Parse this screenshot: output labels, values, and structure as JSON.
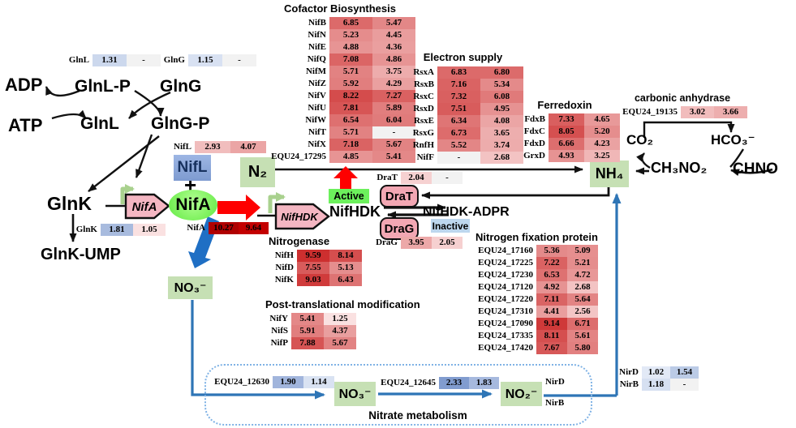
{
  "palette": {
    "red_arrow": "#fe0000",
    "big_blue_arrow": "#1f6fc4",
    "blue_line": "#2e75b6",
    "green_chem_box": "#c6e0b4",
    "gene_pink": "#f4b6c2",
    "enzyme_pink": "#f2a7b3",
    "active_green": "#6cf05c",
    "inactive_blue": "#bdd7ee",
    "nifl_blue": "#8eaadb",
    "nifa_green": "#98f083",
    "dash_border": "#7fb2e5",
    "empty_cell": "#f2f2f2",
    "red_scale_max": "#c92020",
    "blue_scale_max": "#7c98cd"
  },
  "nodes": {
    "adp": "ADP",
    "atp": "ATP",
    "glnlp": "GlnL-P",
    "glng_top": "GlnG",
    "glnl_bottom": "GlnL",
    "glngp": "GlnG-P",
    "glnk": "GlnK",
    "glnk_ump": "GlnK-UMP",
    "nifl_box": "NifL",
    "plus": "+",
    "nifa_ellipse": "NifA",
    "nifa_gene": "NifA",
    "nifhdk_gene": "NifHDK",
    "nifhdk": "NifHDK",
    "nifhdk_adpr": "NifHDK-ADPR",
    "drat": "DraT",
    "drag": "DraG",
    "active": "Active",
    "inactive": "Inactive",
    "n2": "N₂",
    "nh4": "NH₄",
    "no3_upper": "NO₃⁻",
    "no3_inner": "NO₃⁻",
    "no2": "NO₂⁻",
    "co2": "CO₂",
    "hco3": "HCO₃⁻",
    "ch3no2": "CH₃NO₂",
    "chno": "CHNO",
    "carbonic_anhydrase": "carbonic anhydrase",
    "nitrate_metabolism": "Nitrate metabolism",
    "nird_label": "NirD",
    "nirb_label": "NirB"
  },
  "tables": {
    "glnl": {
      "rows": [
        [
          "GlnL",
          "1.31",
          "-"
        ]
      ],
      "scales": [
        "blue",
        "blue"
      ]
    },
    "glng": {
      "rows": [
        [
          "GlnG",
          "1.15",
          "-"
        ]
      ],
      "scales": [
        "blue",
        "blue"
      ]
    },
    "nifl": {
      "rows": [
        [
          "NifL",
          "2.93",
          "4.07"
        ]
      ],
      "scales": [
        "red",
        "red"
      ]
    },
    "glnk": {
      "rows": [
        [
          "GlnK",
          "1.81",
          "1.05"
        ]
      ],
      "scales": [
        "blue",
        "red"
      ]
    },
    "nifa": {
      "rows": [
        [
          "NifA",
          "10.27",
          "9.64"
        ]
      ],
      "scales": [
        "red",
        "red"
      ],
      "colors": [
        [
          "#b00000",
          "#c30000"
        ]
      ]
    },
    "drat": {
      "rows": [
        [
          "DraT",
          "2.04",
          "-"
        ]
      ],
      "scales": [
        "red",
        "red"
      ]
    },
    "drag": {
      "rows": [
        [
          "DraG",
          "3.95",
          "2.05"
        ]
      ],
      "scales": [
        "red",
        "red"
      ]
    },
    "ca": {
      "title": "carbonic anhydrase",
      "rows": [
        [
          "EQU24_19135",
          "3.02",
          "3.66"
        ]
      ],
      "scales": [
        "red",
        "red"
      ]
    },
    "cofactor": {
      "title": "Cofactor Biosynthesis",
      "scales": [
        "red",
        "red"
      ],
      "rows": [
        [
          "NifB",
          "6.85",
          "5.47"
        ],
        [
          "NifN",
          "5.23",
          "4.45"
        ],
        [
          "NifE",
          "4.88",
          "4.36"
        ],
        [
          "NifQ",
          "7.08",
          "4.86"
        ],
        [
          "NifM",
          "5.71",
          "3.75"
        ],
        [
          "NifZ",
          "5.92",
          "4.29"
        ],
        [
          "NifV",
          "8.22",
          "7.27"
        ],
        [
          "NifU",
          "7.81",
          "5.89"
        ],
        [
          "NifW",
          "6.54",
          "6.04"
        ],
        [
          "NifT",
          "5.71",
          "-"
        ],
        [
          "NifX",
          "7.18",
          "5.67"
        ],
        [
          "EQU24_17295",
          "4.85",
          "5.41"
        ]
      ]
    },
    "electron": {
      "title": "Electron supply",
      "scales": [
        "red",
        "red"
      ],
      "rows": [
        [
          "RsxA",
          "6.83",
          "6.80"
        ],
        [
          "RsxB",
          "7.16",
          "5.34"
        ],
        [
          "RsxC",
          "7.32",
          "6.08"
        ],
        [
          "RsxD",
          "7.51",
          "4.95"
        ],
        [
          "RsxE",
          "6.34",
          "4.08"
        ],
        [
          "RsxG",
          "6.73",
          "3.65"
        ],
        [
          "RnfH",
          "5.52",
          "3.74"
        ],
        [
          "NifF",
          "-",
          "2.68"
        ]
      ]
    },
    "ferredoxin": {
      "title": "Ferredoxin",
      "scales": [
        "red",
        "red"
      ],
      "rows": [
        [
          "FdxB",
          "7.33",
          "4.65"
        ],
        [
          "FdxC",
          "8.05",
          "5.20"
        ],
        [
          "FdxD",
          "6.66",
          "4.23"
        ],
        [
          "GrxD",
          "4.93",
          "3.25"
        ]
      ]
    },
    "nitrogenase": {
      "title": "Nitrogenase",
      "scales": [
        "red",
        "red"
      ],
      "rows": [
        [
          "NifH",
          "9.59",
          "8.14"
        ],
        [
          "NifD",
          "7.55",
          "5.13"
        ],
        [
          "NifK",
          "9.03",
          "6.43"
        ]
      ]
    },
    "ptm": {
      "title": "Post-translational modification",
      "scales": [
        "red",
        "red"
      ],
      "rows": [
        [
          "NifY",
          "5.41",
          "1.25"
        ],
        [
          "NifS",
          "5.91",
          "4.37"
        ],
        [
          "NifP",
          "7.88",
          "5.67"
        ]
      ]
    },
    "nfp": {
      "title": "Nitrogen fixation protein",
      "scales": [
        "red",
        "red"
      ],
      "rows": [
        [
          "EQU24_17160",
          "5.36",
          "5.09"
        ],
        [
          "EQU24_17225",
          "7.22",
          "5.21"
        ],
        [
          "EQU24_17230",
          "6.53",
          "4.72"
        ],
        [
          "EQU24_17120",
          "4.92",
          "2.68"
        ],
        [
          "EQU24_17220",
          "7.11",
          "5.64"
        ],
        [
          "EQU24_17310",
          "4.41",
          "2.56"
        ],
        [
          "EQU24_17090",
          "9.14",
          "6.71"
        ],
        [
          "EQU24_17335",
          "8.11",
          "5.61"
        ],
        [
          "EQU24_17420",
          "7.67",
          "5.80"
        ]
      ]
    },
    "equ12630": {
      "rows": [
        [
          "EQU24_12630",
          "1.90",
          "1.14"
        ]
      ],
      "scales": [
        "blue",
        "blue"
      ]
    },
    "equ12645": {
      "rows": [
        [
          "EQU24_12645",
          "2.33",
          "1.83"
        ]
      ],
      "scales": [
        "blue",
        "blue"
      ]
    },
    "nir": {
      "rows": [
        [
          "NirD",
          "1.02",
          "1.54"
        ],
        [
          "NirB",
          "1.18",
          "-"
        ]
      ],
      "scales": [
        "blue",
        "blue"
      ]
    }
  }
}
